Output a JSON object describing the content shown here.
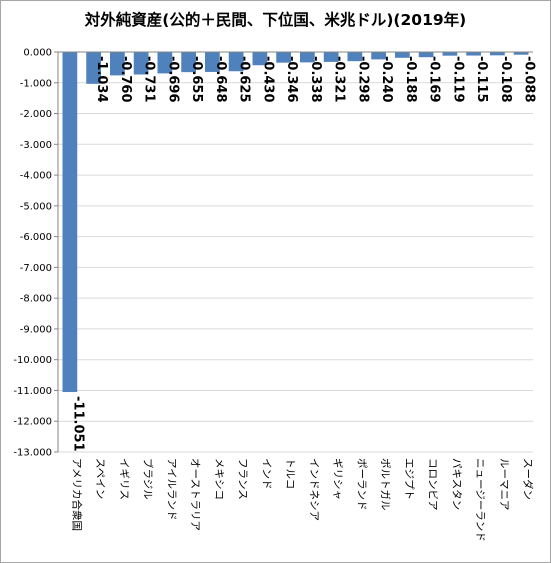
{
  "chart_data": {
    "type": "bar",
    "title": "対外純資産(公的＋民間、下位国、米兆ドル)(2019年)",
    "categories": [
      "アメリカ合衆国",
      "スペイン",
      "イギリス",
      "ブラジル",
      "アイルランド",
      "オーストラリア",
      "メキシコ",
      "フランス",
      "インド",
      "トルコ",
      "インドネシア",
      "ギリシャ",
      "ポーランド",
      "ポルトガル",
      "エジプト",
      "コロンビア",
      "パキスタン",
      "ニュージーランド",
      "ルーマニア",
      "スーダン"
    ],
    "values": [
      -11.051,
      -1.034,
      -0.76,
      -0.731,
      -0.696,
      -0.655,
      -0.648,
      -0.625,
      -0.43,
      -0.346,
      -0.338,
      -0.321,
      -0.298,
      -0.24,
      -0.188,
      -0.169,
      -0.119,
      -0.115,
      -0.108,
      -0.088
    ],
    "value_labels": [
      "-11.051",
      "-1.034",
      "-0.760",
      "-0.731",
      "-0.696",
      "-0.655",
      "-0.648",
      "-0.625",
      "-0.430",
      "-0.346",
      "-0.338",
      "-0.321",
      "-0.298",
      "-0.240",
      "-0.188",
      "-0.169",
      "-0.119",
      "-0.115",
      "-0.108",
      "-0.088"
    ],
    "ylim": [
      -13,
      0
    ],
    "yticks": [
      0,
      -1,
      -2,
      -3,
      -4,
      -5,
      -6,
      -7,
      -8,
      -9,
      -10,
      -11,
      -12,
      -13
    ],
    "ytick_labels": [
      "0.000",
      "-1.000",
      "-2.000",
      "-3.000",
      "-4.000",
      "-5.000",
      "-6.000",
      "-7.000",
      "-8.000",
      "-9.000",
      "-10.000",
      "-11.000",
      "-12.000",
      "-13.000"
    ],
    "grid": true,
    "bar_color": "#4f81bd",
    "grid_color": "#d9d9d9"
  }
}
